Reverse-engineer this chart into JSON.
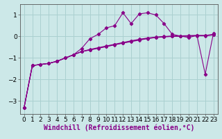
{
  "xlabel": "Windchill (Refroidissement éolien,°C)",
  "ylabel": "",
  "bg_color": "#cce8e8",
  "grid_color": "#aad0d0",
  "line_color": "#880088",
  "x_data": [
    0,
    1,
    2,
    3,
    4,
    5,
    6,
    7,
    8,
    9,
    10,
    11,
    12,
    13,
    14,
    15,
    16,
    17,
    18,
    19,
    20,
    21,
    22,
    23
  ],
  "series1": [
    -3.3,
    -1.35,
    -1.3,
    -1.25,
    -1.15,
    -1.0,
    -0.85,
    -0.55,
    -0.1,
    0.1,
    0.4,
    0.5,
    1.1,
    0.6,
    1.05,
    1.1,
    1.0,
    0.6,
    0.1,
    0.02,
    -0.05,
    0.05,
    -1.75,
    0.15
  ],
  "series2": [
    -3.3,
    -1.35,
    -1.3,
    -1.25,
    -1.15,
    -1.0,
    -0.85,
    -0.7,
    -0.6,
    -0.52,
    -0.44,
    -0.36,
    -0.28,
    -0.2,
    -0.13,
    -0.07,
    -0.03,
    0.0,
    0.02,
    0.03,
    0.04,
    0.05,
    0.05,
    0.1
  ],
  "series3": [
    -3.3,
    -1.35,
    -1.3,
    -1.25,
    -1.15,
    -1.0,
    -0.85,
    -0.7,
    -0.62,
    -0.54,
    -0.46,
    -0.38,
    -0.3,
    -0.22,
    -0.15,
    -0.09,
    -0.04,
    -0.01,
    0.01,
    0.02,
    0.03,
    0.04,
    0.04,
    0.08
  ],
  "series4": [
    -3.3,
    -1.35,
    -1.3,
    -1.25,
    -1.15,
    -1.0,
    -0.85,
    -0.7,
    -0.63,
    -0.55,
    -0.47,
    -0.39,
    -0.31,
    -0.24,
    -0.17,
    -0.1,
    -0.05,
    -0.02,
    0.0,
    0.01,
    0.02,
    0.03,
    0.03,
    0.07
  ],
  "xlim": [
    -0.5,
    23.5
  ],
  "ylim": [
    -3.6,
    1.5
  ],
  "xticks": [
    0,
    1,
    2,
    3,
    4,
    5,
    6,
    7,
    8,
    9,
    10,
    11,
    12,
    13,
    14,
    15,
    16,
    17,
    18,
    19,
    20,
    21,
    22,
    23
  ],
  "yticks": [
    -3,
    -2,
    -1,
    0,
    1
  ],
  "tick_fontsize": 6.5,
  "xlabel_fontsize": 7.0
}
